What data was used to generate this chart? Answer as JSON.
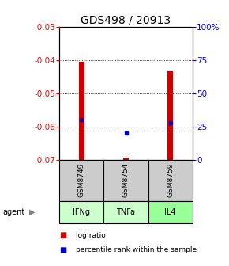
{
  "title": "GDS498 / 20913",
  "samples": [
    "GSM8749",
    "GSM8754",
    "GSM8759"
  ],
  "agents": [
    "IFNg",
    "TNFa",
    "IL4"
  ],
  "log_ratios": [
    -0.0405,
    -0.0695,
    -0.0435
  ],
  "percentile_ranks": [
    30,
    20,
    28
  ],
  "ylim_left": [
    -0.07,
    -0.03
  ],
  "ylim_right": [
    0,
    100
  ],
  "yticks_left": [
    -0.07,
    -0.06,
    -0.05,
    -0.04,
    -0.03
  ],
  "yticks_right": [
    0,
    25,
    50,
    75,
    100
  ],
  "bar_color": "#cc0000",
  "percentile_color": "#0000cc",
  "agent_colors": [
    "#ccffcc",
    "#ccffcc",
    "#99ff99"
  ],
  "sample_box_color": "#cccccc",
  "title_fontsize": 10,
  "tick_fontsize": 7.5,
  "label_fontsize": 7,
  "legend_fontsize": 6.5
}
